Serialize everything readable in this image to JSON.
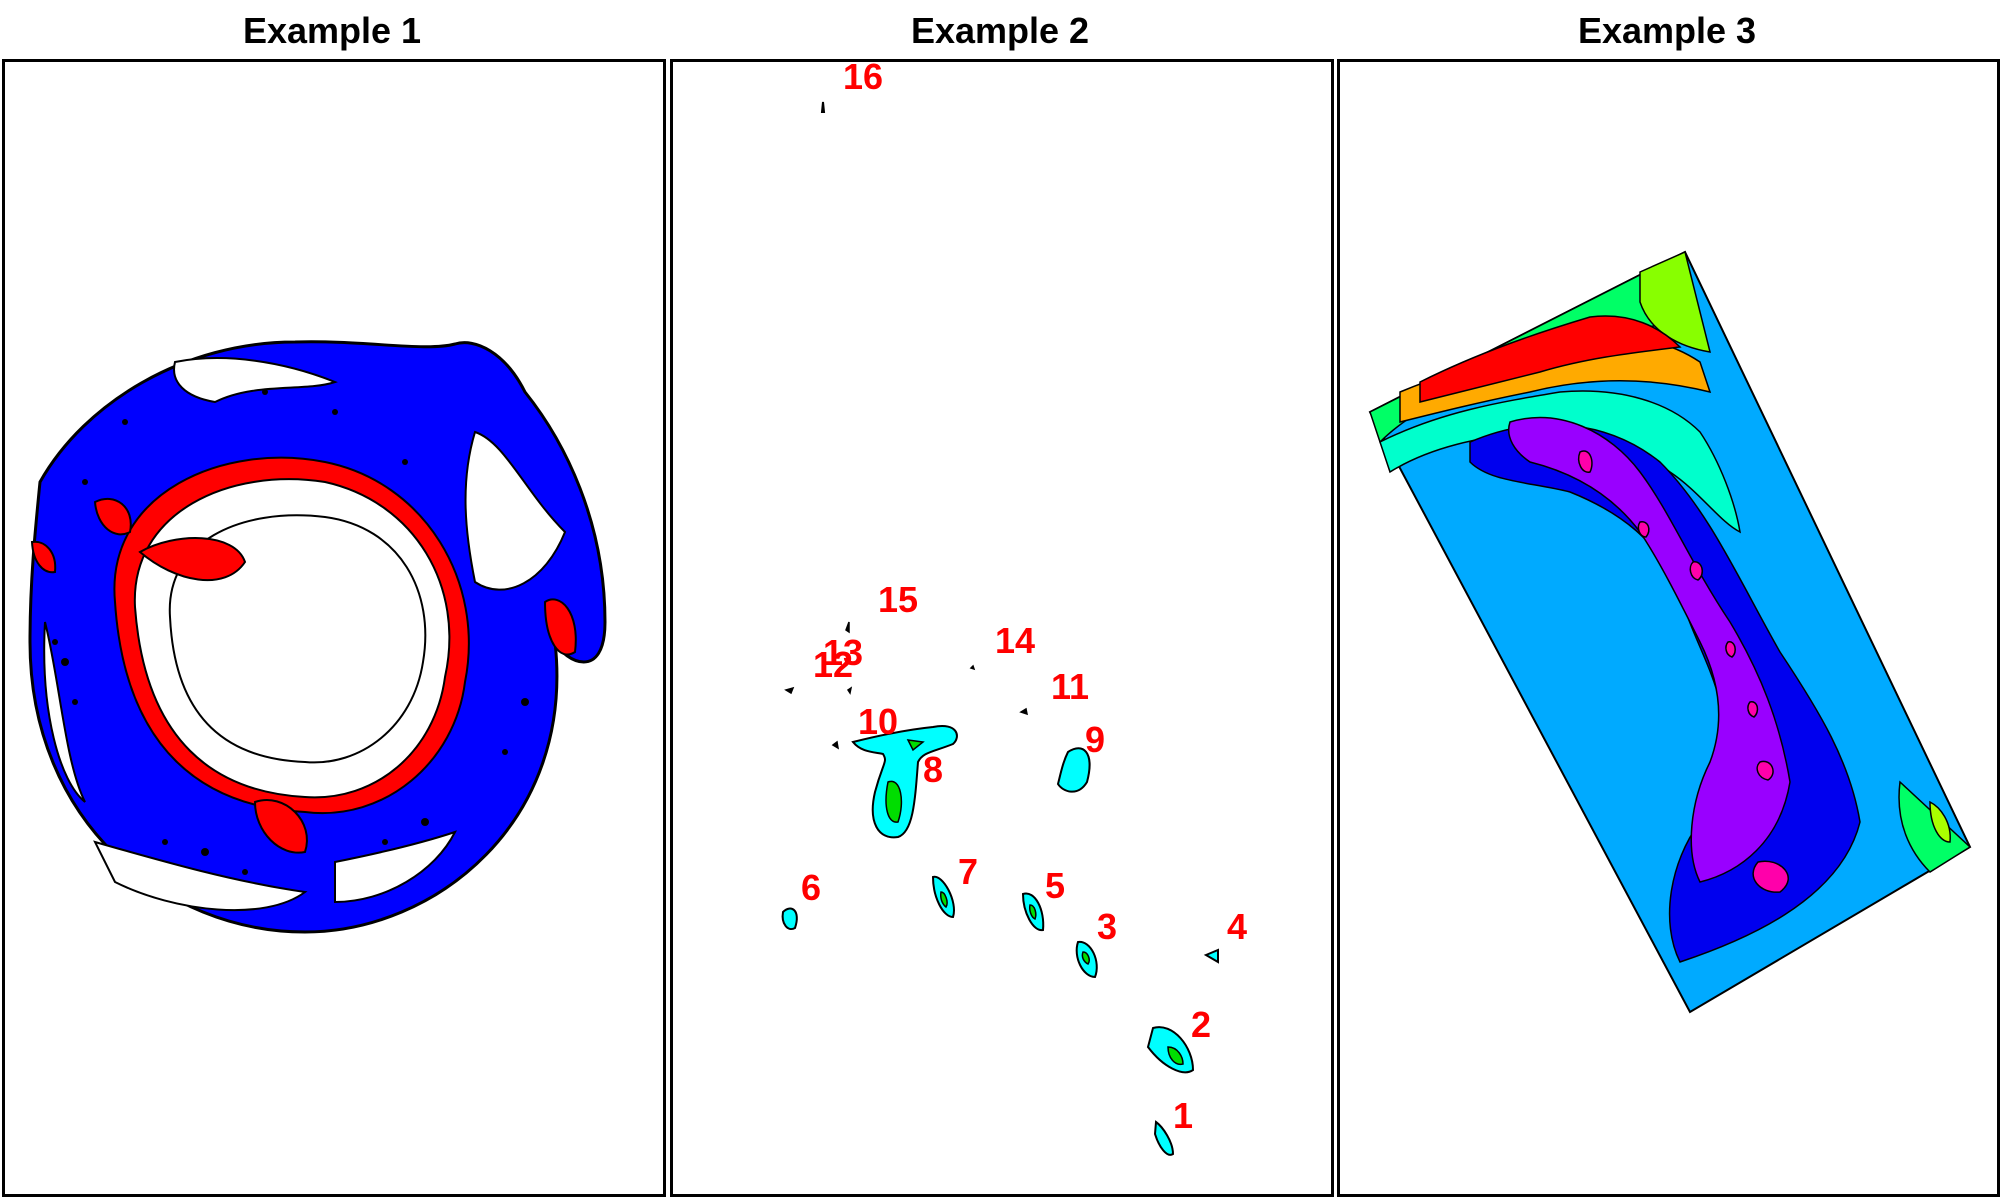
{
  "panels": [
    {
      "title": "Example 1"
    },
    {
      "title": "Example 2"
    },
    {
      "title": "Example 3"
    }
  ],
  "example2": {
    "labels": [
      "1",
      "2",
      "3",
      "4",
      "5",
      "6",
      "7",
      "8",
      "9",
      "10",
      "11",
      "12",
      "13",
      "14",
      "15",
      "16"
    ]
  },
  "colors": {
    "land_red": "#ff0000",
    "ocean_blue": "#0000ff",
    "cyan": "#00ffff",
    "green": "#00dd00",
    "label_red": "#ff0000",
    "deep_blue": "#0000ee",
    "light_blue": "#00aaff",
    "purple": "#9900ff",
    "magenta": "#ff00aa",
    "orange": "#ffaa00",
    "yellow_green": "#aaff00"
  }
}
